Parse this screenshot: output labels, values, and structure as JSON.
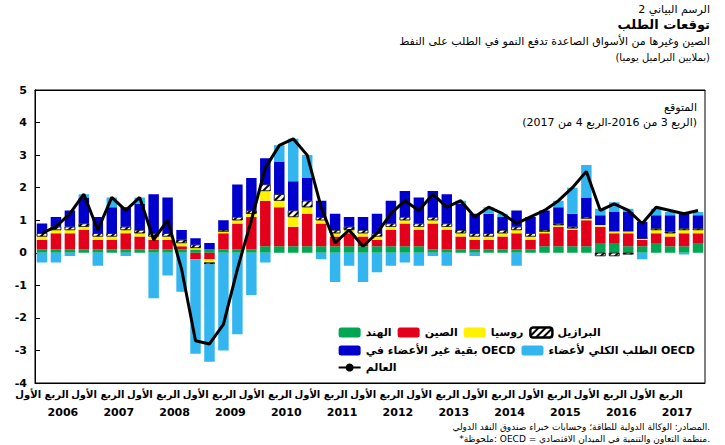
{
  "chart_data": {
    "type": "bar",
    "figure_label": "الرسم البياني 2",
    "title": "توقعات الطلب",
    "subtitle": "الصين وغيرها من الأسواق الصاعدة تدفع النمو في الطلب على النفط",
    "y_label": "(بملايين البراميل يوميا)",
    "annotations": [
      "المتوقع",
      "(الربع 3 من 2016-الربع 4 من 2017)"
    ],
    "notes": [
      "المصادر: الوكالة الدولية للطاقة؛ وحسابات خبراء صندوق النقد الدولي.",
      "*ملحوظة: OECD = منظمة التعاون والتنمية في الميدان الاقتصادي."
    ],
    "categories": [
      "الربع الأول",
      null,
      null,
      null,
      "الربع الأول",
      null,
      null,
      null,
      "الربع الأول",
      null,
      null,
      null,
      "الربع الأول",
      null,
      null,
      null,
      "الربع الأول",
      null,
      null,
      null,
      "الربع الأول",
      null,
      null,
      null,
      "الربع الأول",
      null,
      null,
      null,
      "الربع الأول",
      null,
      null,
      null,
      "الربع الأول",
      null,
      null,
      null,
      "الربع الأول",
      null,
      null,
      null,
      "الربع الأول",
      null,
      null,
      null,
      "الربع الأول",
      null,
      null,
      null
    ],
    "x_groups": [
      "2006",
      "2007",
      "2008",
      "2009",
      "2010",
      "2011",
      "2012",
      "2013",
      "2014",
      "2015",
      "2016",
      "2017"
    ],
    "stacked": true,
    "grid": false,
    "legend": "lower right",
    "ylim": [
      -4,
      5
    ],
    "yticks": [
      -4,
      -3,
      -2,
      -1,
      0,
      1,
      2,
      3,
      4,
      5
    ],
    "series": [
      {
        "name": "الهند",
        "color": "#00a651",
        "values": [
          0.1,
          0.1,
          0.1,
          0.1,
          0.1,
          0.1,
          0.1,
          0.1,
          0.1,
          0.1,
          0.1,
          0.1,
          0.1,
          0.1,
          0.1,
          0.1,
          0.2,
          0.2,
          0.2,
          0.2,
          0.2,
          0.2,
          0.2,
          0.2,
          0.2,
          0.2,
          0.2,
          0.2,
          0.1,
          0.1,
          0.1,
          0.1,
          0.1,
          0.1,
          0.1,
          0.1,
          0.2,
          0.2,
          0.2,
          0.2,
          0.3,
          0.3,
          0.2,
          0.2,
          0.3,
          0.2,
          0.2,
          0.3
        ]
      },
      {
        "name": "الصين",
        "color": "#e2001a",
        "values": [
          0.3,
          0.5,
          0.5,
          0.6,
          0.3,
          0.3,
          0.5,
          0.4,
          0.3,
          0.3,
          0.1,
          -0.2,
          -0.2,
          0.5,
          0.8,
          1.0,
          1.4,
          1.2,
          0.6,
          1.0,
          0.7,
          0.3,
          0.4,
          0.3,
          0.2,
          0.5,
          0.7,
          0.5,
          0.8,
          0.6,
          0.4,
          0.3,
          0.3,
          0.4,
          0.5,
          0.3,
          0.4,
          0.6,
          0.5,
          0.8,
          0.5,
          0.3,
          0.4,
          0.2,
          0.3,
          0.3,
          0.4,
          0.3
        ]
      },
      {
        "name": "روسيا",
        "color": "#fff200",
        "values": [
          0.1,
          0.1,
          0.1,
          0.1,
          0.1,
          0.1,
          0.1,
          0.1,
          0.1,
          0.1,
          0.1,
          0.05,
          -0.1,
          0.05,
          0.1,
          0.1,
          0.3,
          0.2,
          0.3,
          0.2,
          0.1,
          0.1,
          0.1,
          0.1,
          0.1,
          0.1,
          0.1,
          0.1,
          0.1,
          0.1,
          0.1,
          0.1,
          0.1,
          0.1,
          0.1,
          0.1,
          0.05,
          0.05,
          0.05,
          0.05,
          0.05,
          0.05,
          0.05,
          0.05,
          0.1,
          0.1,
          0.1,
          0.1
        ]
      },
      {
        "name": "البرازيل",
        "color": "#000000",
        "marker": "hatch",
        "values": [
          0.1,
          0.1,
          0.1,
          0.1,
          0.1,
          0.1,
          0.1,
          0.1,
          0.1,
          0.1,
          0.1,
          0.1,
          -0.05,
          0.05,
          0.1,
          0.1,
          0.2,
          0.2,
          0.2,
          0.2,
          0.1,
          0.1,
          0.1,
          0.1,
          0.1,
          0.1,
          0.1,
          0.1,
          0.1,
          0.1,
          0.1,
          0.1,
          0.1,
          0.1,
          0.1,
          0.1,
          0.05,
          0.05,
          0.05,
          0.05,
          -0.1,
          -0.1,
          -0.05,
          0,
          0.05,
          0.05,
          0.05,
          0.05
        ]
      },
      {
        "name": "بقية غير الأعضاء في OECD",
        "color": "#0000cc",
        "values": [
          0.3,
          0.3,
          0.5,
          0.8,
          0.5,
          0.8,
          0.6,
          0.8,
          1.2,
          1.1,
          0.3,
          0.2,
          0.2,
          0.3,
          1.0,
          1.0,
          0.8,
          1.0,
          0.9,
          0.7,
          0.5,
          0.5,
          0.3,
          0.4,
          0.6,
          0.7,
          0.8,
          0.8,
          0.8,
          0.9,
          0.8,
          0.6,
          0.6,
          0.4,
          0.5,
          0.5,
          0.6,
          0.5,
          0.4,
          0.6,
          0.3,
          0.6,
          0.6,
          0.5,
          0.4,
          0.5,
          0.5,
          0.4
        ]
      },
      {
        "name": "الطلب الكلي لأعضاء OECD",
        "color": "#33b5f0",
        "values": [
          -0.3,
          -0.3,
          -0.1,
          0.1,
          -0.4,
          0.3,
          -0.1,
          0.2,
          -1.4,
          -0.7,
          -1.2,
          -2.9,
          -3.0,
          -3.0,
          -2.5,
          -1.3,
          -0.3,
          0.5,
          1.3,
          0.7,
          -0.2,
          -0.9,
          -0.4,
          -0.9,
          -0.6,
          -0.4,
          -0.3,
          -0.4,
          -0.1,
          -0.4,
          0.1,
          -0.1,
          0.2,
          0.1,
          -0.4,
          0,
          0,
          0.2,
          0.8,
          1.0,
          0.2,
          0.3,
          0.1,
          -0.2,
          0.2,
          0.1,
          -0.05,
          0.1
        ]
      },
      {
        "name": "العالم",
        "type": "line",
        "color": "#000000",
        "values": [
          0.6,
          0.8,
          1.2,
          1.8,
          0.7,
          1.7,
          1.3,
          1.7,
          0.4,
          1.0,
          -0.5,
          -2.7,
          -2.8,
          -2.2,
          -0.5,
          1.0,
          2.6,
          3.3,
          3.5,
          3.0,
          1.4,
          0.3,
          0.7,
          0.2,
          0.6,
          1.2,
          1.6,
          1.3,
          1.8,
          1.4,
          1.6,
          1.1,
          1.4,
          1.2,
          0.9,
          1.1,
          1.3,
          1.6,
          2.0,
          2.5,
          1.3,
          1.5,
          1.3,
          0.9,
          1.4,
          1.3,
          1.2,
          1.3
        ]
      }
    ]
  }
}
